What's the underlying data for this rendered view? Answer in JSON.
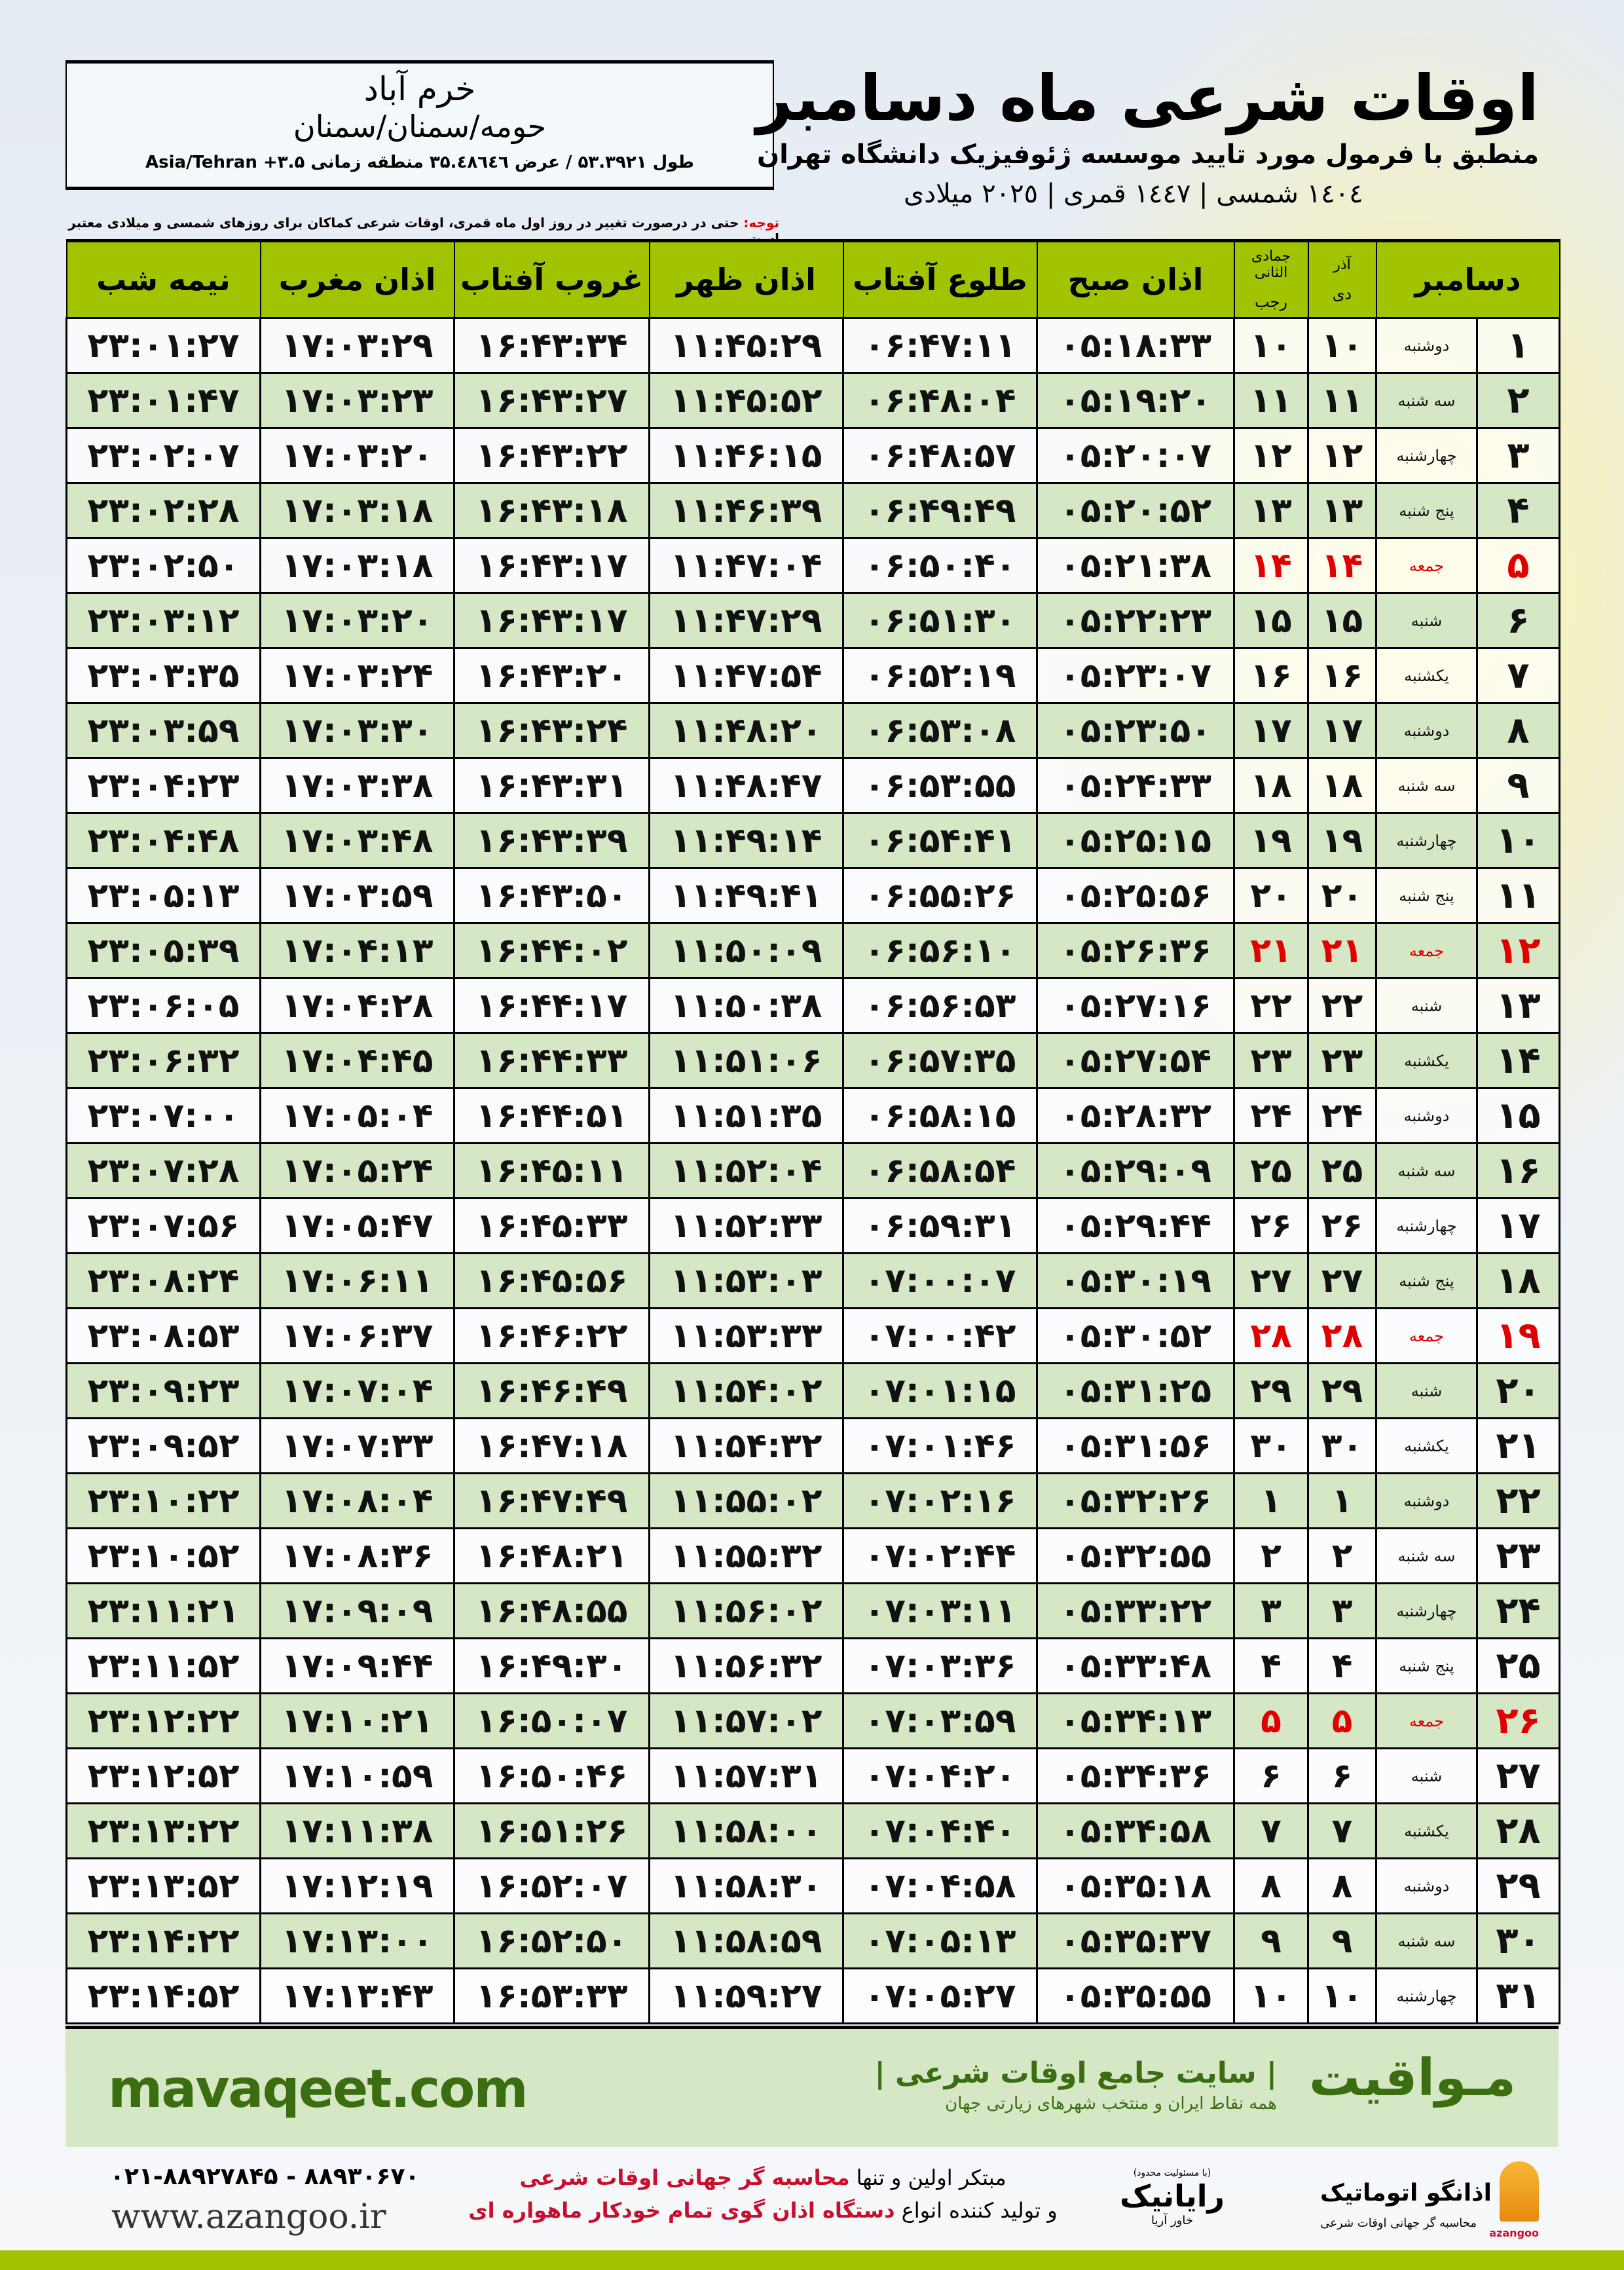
{
  "header": {
    "city": "خرم آباد",
    "region": "حومه/سمنان/سمنان",
    "coords": "طول ۵۳.۳۹۲۱ / عرض ۳۵.٤٨٦٤٦ منطقه زمانی ۳.۵+ Asia/Tehran",
    "title": "اوقات شرعی ماه دسامبر",
    "subtitle": "منطبق با فرمول مورد تایید موسسه ژئوفیزیک دانشگاه تهران",
    "dates": "١٤٠٤ شمسی | ١٤٤٧ قمری | ٢٠٢٥ میلادی",
    "note_label": "توجه:",
    "note_text": " حتی در درصورت تغییر در روز اول ماه قمری، اوقات شرعی کماکان برای روزهای شمسی و میلادی معتبر است."
  },
  "table": {
    "columns": {
      "month": "دسامبر",
      "azar": "آذر",
      "dey": "دی",
      "jamadi": "جمادی الثانی",
      "rajab": "رجب",
      "fajr": "اذان صبح",
      "sunrise": "طلوع آفتاب",
      "dhuhr": "اذان ظهر",
      "sunset": "غروب آفتاب",
      "maghrib": "اذان مغرب",
      "midnight": "نیمه شب"
    },
    "holiday_color": "#e00000",
    "header_color": "#a2c400",
    "rows": [
      [
        "۱",
        "دوشنبه",
        "۱۰",
        "۱۰",
        "۰۵:۱۸:۳۳",
        "۰۶:۴۷:۱۱",
        "۱۱:۴۵:۲۹",
        "۱۶:۴۳:۳۴",
        "۱۷:۰۳:۲۹",
        "۲۳:۰۱:۲۷",
        false
      ],
      [
        "۲",
        "سه شنبه",
        "۱۱",
        "۱۱",
        "۰۵:۱۹:۲۰",
        "۰۶:۴۸:۰۴",
        "۱۱:۴۵:۵۲",
        "۱۶:۴۳:۲۷",
        "۱۷:۰۳:۲۳",
        "۲۳:۰۱:۴۷",
        false
      ],
      [
        "۳",
        "چهارشنبه",
        "۱۲",
        "۱۲",
        "۰۵:۲۰:۰۷",
        "۰۶:۴۸:۵۷",
        "۱۱:۴۶:۱۵",
        "۱۶:۴۳:۲۲",
        "۱۷:۰۳:۲۰",
        "۲۳:۰۲:۰۷",
        false
      ],
      [
        "۴",
        "پنج شنبه",
        "۱۳",
        "۱۳",
        "۰۵:۲۰:۵۲",
        "۰۶:۴۹:۴۹",
        "۱۱:۴۶:۳۹",
        "۱۶:۴۳:۱۸",
        "۱۷:۰۳:۱۸",
        "۲۳:۰۲:۲۸",
        false
      ],
      [
        "۵",
        "جمعه",
        "۱۴",
        "۱۴",
        "۰۵:۲۱:۳۸",
        "۰۶:۵۰:۴۰",
        "۱۱:۴۷:۰۴",
        "۱۶:۴۳:۱۷",
        "۱۷:۰۳:۱۸",
        "۲۳:۰۲:۵۰",
        true
      ],
      [
        "۶",
        "شنبه",
        "۱۵",
        "۱۵",
        "۰۵:۲۲:۲۳",
        "۰۶:۵۱:۳۰",
        "۱۱:۴۷:۲۹",
        "۱۶:۴۳:۱۷",
        "۱۷:۰۳:۲۰",
        "۲۳:۰۳:۱۲",
        false
      ],
      [
        "۷",
        "یکشنبه",
        "۱۶",
        "۱۶",
        "۰۵:۲۳:۰۷",
        "۰۶:۵۲:۱۹",
        "۱۱:۴۷:۵۴",
        "۱۶:۴۳:۲۰",
        "۱۷:۰۳:۲۴",
        "۲۳:۰۳:۳۵",
        false
      ],
      [
        "۸",
        "دوشنبه",
        "۱۷",
        "۱۷",
        "۰۵:۲۳:۵۰",
        "۰۶:۵۳:۰۸",
        "۱۱:۴۸:۲۰",
        "۱۶:۴۳:۲۴",
        "۱۷:۰۳:۳۰",
        "۲۳:۰۳:۵۹",
        false
      ],
      [
        "۹",
        "سه شنبه",
        "۱۸",
        "۱۸",
        "۰۵:۲۴:۳۳",
        "۰۶:۵۳:۵۵",
        "۱۱:۴۸:۴۷",
        "۱۶:۴۳:۳۱",
        "۱۷:۰۳:۳۸",
        "۲۳:۰۴:۲۳",
        false
      ],
      [
        "۱۰",
        "چهارشنبه",
        "۱۹",
        "۱۹",
        "۰۵:۲۵:۱۵",
        "۰۶:۵۴:۴۱",
        "۱۱:۴۹:۱۴",
        "۱۶:۴۳:۳۹",
        "۱۷:۰۳:۴۸",
        "۲۳:۰۴:۴۸",
        false
      ],
      [
        "۱۱",
        "پنج شنبه",
        "۲۰",
        "۲۰",
        "۰۵:۲۵:۵۶",
        "۰۶:۵۵:۲۶",
        "۱۱:۴۹:۴۱",
        "۱۶:۴۳:۵۰",
        "۱۷:۰۳:۵۹",
        "۲۳:۰۵:۱۳",
        false
      ],
      [
        "۱۲",
        "جمعه",
        "۲۱",
        "۲۱",
        "۰۵:۲۶:۳۶",
        "۰۶:۵۶:۱۰",
        "۱۱:۵۰:۰۹",
        "۱۶:۴۴:۰۲",
        "۱۷:۰۴:۱۳",
        "۲۳:۰۵:۳۹",
        true
      ],
      [
        "۱۳",
        "شنبه",
        "۲۲",
        "۲۲",
        "۰۵:۲۷:۱۶",
        "۰۶:۵۶:۵۳",
        "۱۱:۵۰:۳۸",
        "۱۶:۴۴:۱۷",
        "۱۷:۰۴:۲۸",
        "۲۳:۰۶:۰۵",
        false
      ],
      [
        "۱۴",
        "یکشنبه",
        "۲۳",
        "۲۳",
        "۰۵:۲۷:۵۴",
        "۰۶:۵۷:۳۵",
        "۱۱:۵۱:۰۶",
        "۱۶:۴۴:۳۳",
        "۱۷:۰۴:۴۵",
        "۲۳:۰۶:۳۲",
        false
      ],
      [
        "۱۵",
        "دوشنبه",
        "۲۴",
        "۲۴",
        "۰۵:۲۸:۳۲",
        "۰۶:۵۸:۱۵",
        "۱۱:۵۱:۳۵",
        "۱۶:۴۴:۵۱",
        "۱۷:۰۵:۰۴",
        "۲۳:۰۷:۰۰",
        false
      ],
      [
        "۱۶",
        "سه شنبه",
        "۲۵",
        "۲۵",
        "۰۵:۲۹:۰۹",
        "۰۶:۵۸:۵۴",
        "۱۱:۵۲:۰۴",
        "۱۶:۴۵:۱۱",
        "۱۷:۰۵:۲۴",
        "۲۳:۰۷:۲۸",
        false
      ],
      [
        "۱۷",
        "چهارشنبه",
        "۲۶",
        "۲۶",
        "۰۵:۲۹:۴۴",
        "۰۶:۵۹:۳۱",
        "۱۱:۵۲:۳۳",
        "۱۶:۴۵:۳۳",
        "۱۷:۰۵:۴۷",
        "۲۳:۰۷:۵۶",
        false
      ],
      [
        "۱۸",
        "پنج شنبه",
        "۲۷",
        "۲۷",
        "۰۵:۳۰:۱۹",
        "۰۷:۰۰:۰۷",
        "۱۱:۵۳:۰۳",
        "۱۶:۴۵:۵۶",
        "۱۷:۰۶:۱۱",
        "۲۳:۰۸:۲۴",
        false
      ],
      [
        "۱۹",
        "جمعه",
        "۲۸",
        "۲۸",
        "۰۵:۳۰:۵۲",
        "۰۷:۰۰:۴۲",
        "۱۱:۵۳:۳۳",
        "۱۶:۴۶:۲۲",
        "۱۷:۰۶:۳۷",
        "۲۳:۰۸:۵۳",
        true
      ],
      [
        "۲۰",
        "شنبه",
        "۲۹",
        "۲۹",
        "۰۵:۳۱:۲۵",
        "۰۷:۰۱:۱۵",
        "۱۱:۵۴:۰۲",
        "۱۶:۴۶:۴۹",
        "۱۷:۰۷:۰۴",
        "۲۳:۰۹:۲۳",
        false
      ],
      [
        "۲۱",
        "یکشنبه",
        "۳۰",
        "۳۰",
        "۰۵:۳۱:۵۶",
        "۰۷:۰۱:۴۶",
        "۱۱:۵۴:۳۲",
        "۱۶:۴۷:۱۸",
        "۱۷:۰۷:۳۳",
        "۲۳:۰۹:۵۲",
        false
      ],
      [
        "۲۲",
        "دوشنبه",
        "۱",
        "۱",
        "۰۵:۳۲:۲۶",
        "۰۷:۰۲:۱۶",
        "۱۱:۵۵:۰۲",
        "۱۶:۴۷:۴۹",
        "۱۷:۰۸:۰۴",
        "۲۳:۱۰:۲۲",
        false
      ],
      [
        "۲۳",
        "سه شنبه",
        "۲",
        "۲",
        "۰۵:۳۲:۵۵",
        "۰۷:۰۲:۴۴",
        "۱۱:۵۵:۳۲",
        "۱۶:۴۸:۲۱",
        "۱۷:۰۸:۳۶",
        "۲۳:۱۰:۵۲",
        false
      ],
      [
        "۲۴",
        "چهارشنبه",
        "۳",
        "۳",
        "۰۵:۳۳:۲۲",
        "۰۷:۰۳:۱۱",
        "۱۱:۵۶:۰۲",
        "۱۶:۴۸:۵۵",
        "۱۷:۰۹:۰۹",
        "۲۳:۱۱:۲۱",
        false
      ],
      [
        "۲۵",
        "پنج شنبه",
        "۴",
        "۴",
        "۰۵:۳۳:۴۸",
        "۰۷:۰۳:۳۶",
        "۱۱:۵۶:۳۲",
        "۱۶:۴۹:۳۰",
        "۱۷:۰۹:۴۴",
        "۲۳:۱۱:۵۲",
        false
      ],
      [
        "۲۶",
        "جمعه",
        "۵",
        "۵",
        "۰۵:۳۴:۱۳",
        "۰۷:۰۳:۵۹",
        "۱۱:۵۷:۰۲",
        "۱۶:۵۰:۰۷",
        "۱۷:۱۰:۲۱",
        "۲۳:۱۲:۲۲",
        true
      ],
      [
        "۲۷",
        "شنبه",
        "۶",
        "۶",
        "۰۵:۳۴:۳۶",
        "۰۷:۰۴:۲۰",
        "۱۱:۵۷:۳۱",
        "۱۶:۵۰:۴۶",
        "۱۷:۱۰:۵۹",
        "۲۳:۱۲:۵۲",
        false
      ],
      [
        "۲۸",
        "یکشنبه",
        "۷",
        "۷",
        "۰۵:۳۴:۵۸",
        "۰۷:۰۴:۴۰",
        "۱۱:۵۸:۰۰",
        "۱۶:۵۱:۲۶",
        "۱۷:۱۱:۳۸",
        "۲۳:۱۳:۲۲",
        false
      ],
      [
        "۲۹",
        "دوشنبه",
        "۸",
        "۸",
        "۰۵:۳۵:۱۸",
        "۰۷:۰۴:۵۸",
        "۱۱:۵۸:۳۰",
        "۱۶:۵۲:۰۷",
        "۱۷:۱۲:۱۹",
        "۲۳:۱۳:۵۲",
        false
      ],
      [
        "۳۰",
        "سه شنبه",
        "۹",
        "۹",
        "۰۵:۳۵:۳۷",
        "۰۷:۰۵:۱۳",
        "۱۱:۵۸:۵۹",
        "۱۶:۵۲:۵۰",
        "۱۷:۱۳:۰۰",
        "۲۳:۱۴:۲۲",
        false
      ],
      [
        "۳۱",
        "چهارشنبه",
        "۱۰",
        "۱۰",
        "۰۵:۳۵:۵۵",
        "۰۷:۰۵:۲۷",
        "۱۱:۵۹:۲۷",
        "۱۶:۵۳:۳۳",
        "۱۷:۱۳:۴۳",
        "۲۳:۱۴:۵۲",
        false
      ]
    ]
  },
  "footer": {
    "brand": "مـواقیت",
    "brand_tagline": "| سایت جامع اوقات شرعی |",
    "brand_sub": "همه نقاط ایران و منتخب شهرهای زیارتی جهان",
    "site": "mavaqeet.com",
    "phone": "۰۲۱-۸۸۹۲۷۸۴۵ - ۸۸۹۳۰۶۷۰",
    "www": "www.azangoo.ir",
    "promo1_a": "مبتکر اولین و تنها ",
    "promo1_b": "محاسبه گر جهانی اوقات شرعی",
    "promo2_a": "و تولید کننده انواع ",
    "promo2_b": "دستگاه اذان گوی تمام خودکار ماهواره ای",
    "rayanik_note": "(با مسئولیت محدود)",
    "rayanik": "رایانیک",
    "rayanik_sub": "خاور آریا",
    "azangoo_name": "اذانگو اتوماتیک",
    "azangoo_sub": "محاسبه گر جهانی اوقات شرعی",
    "azangoo_latin": "azangoo"
  }
}
